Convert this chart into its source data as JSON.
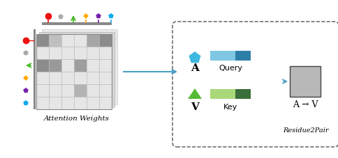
{
  "fig_width": 4.84,
  "fig_height": 2.28,
  "dpi": 100,
  "attention_matrix": [
    [
      0.55,
      0.75,
      0.9,
      0.9,
      0.65,
      0.55
    ],
    [
      0.9,
      0.9,
      0.9,
      0.9,
      0.9,
      0.9
    ],
    [
      0.55,
      0.6,
      0.9,
      0.62,
      0.9,
      0.9
    ],
    [
      0.9,
      0.9,
      0.9,
      0.9,
      0.9,
      0.9
    ],
    [
      0.9,
      0.9,
      0.9,
      0.7,
      0.9,
      0.9
    ],
    [
      0.9,
      0.9,
      0.9,
      0.9,
      0.9,
      0.9
    ]
  ],
  "row_colors": [
    "#ee1111",
    "#aaaaaa",
    "#44bb22",
    "#ffaa00",
    "#7722aa",
    "#11aaee"
  ],
  "col_colors": [
    "#ee1111",
    "#aaaaaa",
    "#44bb22",
    "#ffaa00",
    "#7722aa",
    "#11aaee"
  ],
  "query_colors_light": "#7ec8e3",
  "query_colors_dark": "#2e7fa8",
  "key_colors_light": "#a8d878",
  "key_colors_dark": "#3a6e3a",
  "arrow_color": "#4a9ec4",
  "background": "#ffffff",
  "text_attention": "Attention Weights",
  "text_query": "Query",
  "text_key": "Key",
  "text_label_A": "A",
  "text_label_V": "V",
  "text_AtoV": "A → V",
  "text_residue2pair": "Residue2Pair"
}
